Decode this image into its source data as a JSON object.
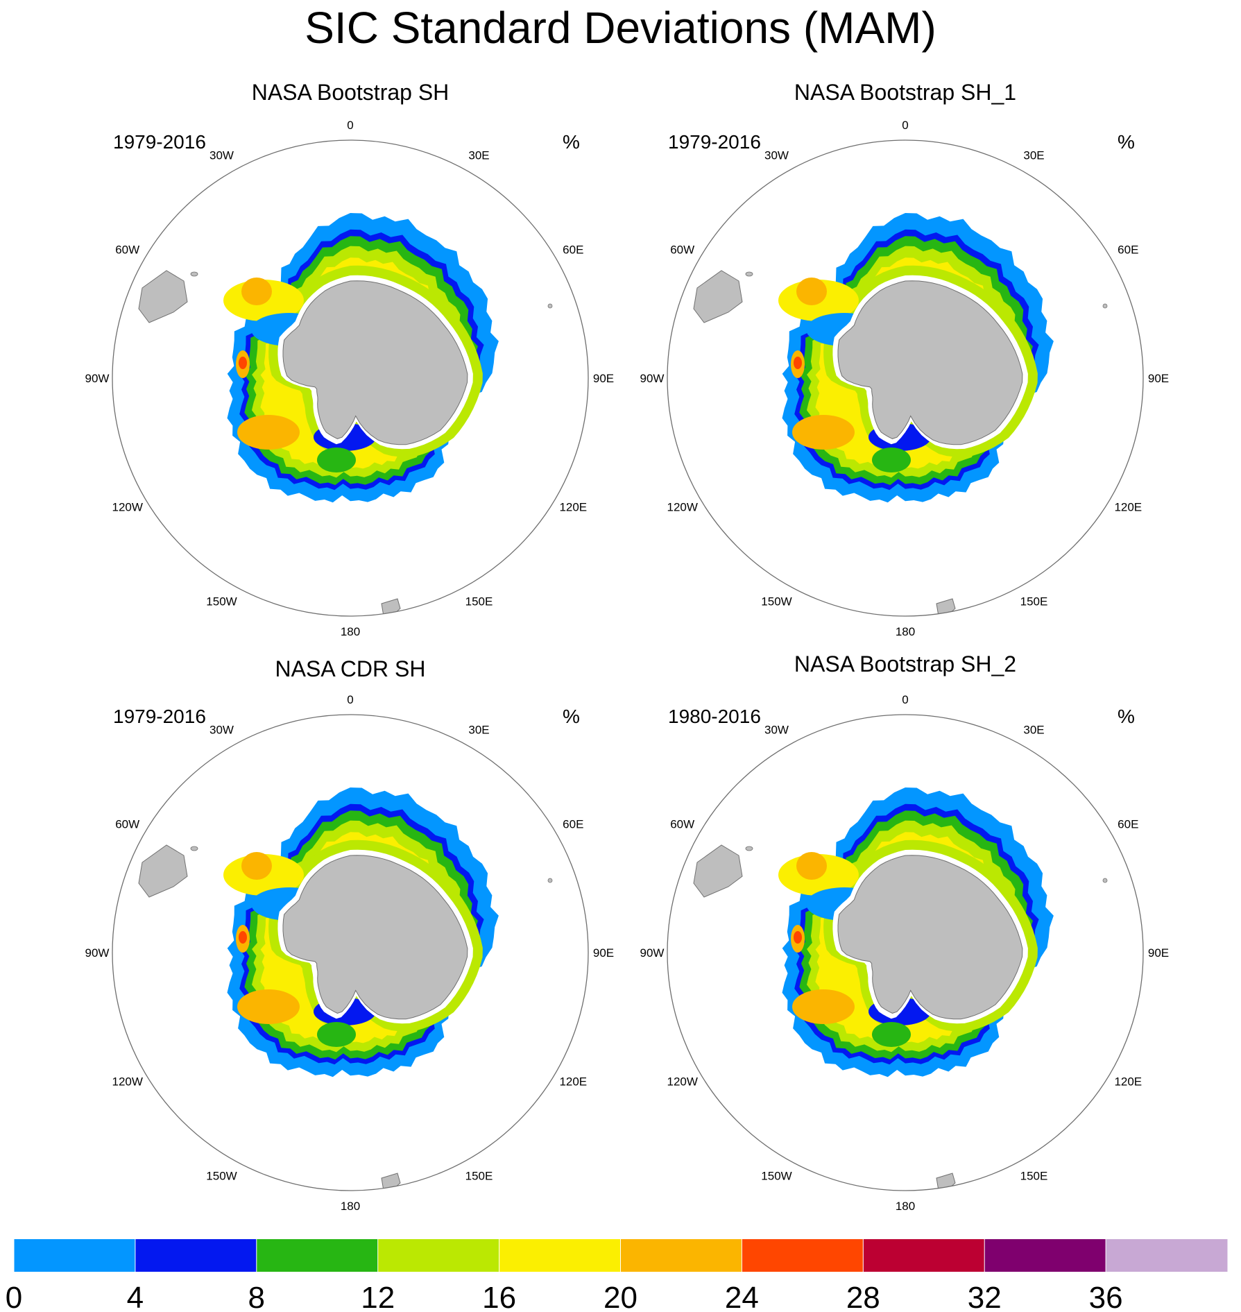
{
  "title": "SIC Standard Deviations (MAM)",
  "unit_label": "%",
  "lon_labels": [
    "0",
    "30E",
    "60E",
    "90E",
    "120E",
    "150E",
    "180",
    "150W",
    "120W",
    "90W",
    "60W",
    "30W"
  ],
  "colors": {
    "land": "#bebebe",
    "land_edge": "#707070",
    "boundary": "#6e6e6e",
    "bins": [
      "#0396ff",
      "#0318f0",
      "#27b613",
      "#bbe802",
      "#fbef01",
      "#fbb500",
      "#ff4600",
      "#bc0032",
      "#7f006e",
      "#c8a8d4"
    ]
  },
  "chart_data": [
    {
      "type": "heatmap",
      "title": "NASA Bootstrap SH",
      "period": "1979-2016",
      "unit": "%",
      "projection": "south polar stereographic"
    },
    {
      "type": "heatmap",
      "title": "NASA Bootstrap SH_1",
      "period": "1979-2016",
      "unit": "%",
      "projection": "south polar stereographic"
    },
    {
      "type": "heatmap",
      "title": "NASA CDR SH",
      "period": "1979-2016",
      "unit": "%",
      "projection": "south polar stereographic"
    },
    {
      "type": "heatmap",
      "title": "NASA Bootstrap SH_2",
      "period": "1980-2016",
      "unit": "%",
      "projection": "south polar stereographic"
    }
  ],
  "colorbar": {
    "min": 0,
    "max": 40,
    "interval": 4,
    "tick_labels": [
      "0",
      "4",
      "8",
      "12",
      "16",
      "20",
      "24",
      "28",
      "32",
      "36"
    ]
  }
}
